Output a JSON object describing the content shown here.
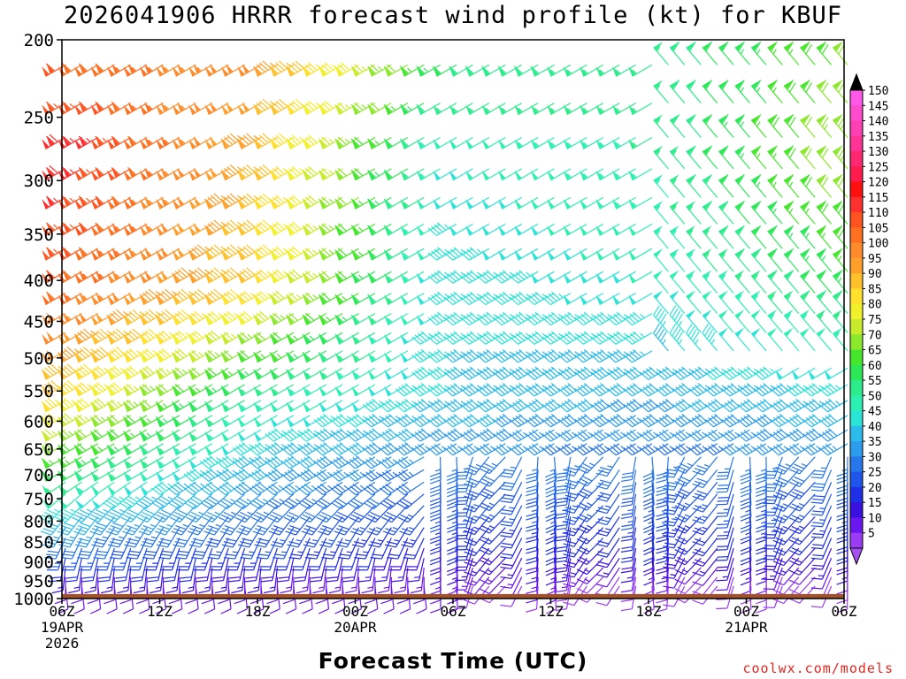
{
  "title": "2026041906 HRRR forecast wind profile (kt) for KBUF",
  "xlabel": "Forecast Time (UTC)",
  "credit": "coolwx.com/models",
  "chart_data": {
    "type": "wind-barb time-height section",
    "title": "2026041906 HRRR forecast wind profile (kt) for KBUF",
    "xlabel": "Forecast Time (UTC)",
    "ylabel": "",
    "y_scale": "log pressure (inverted)",
    "ylim": [
      1000,
      200
    ],
    "xlim_hours": [
      0,
      48
    ],
    "y_ticks": [
      200,
      250,
      300,
      350,
      400,
      450,
      500,
      550,
      600,
      650,
      700,
      750,
      800,
      850,
      900,
      950,
      1000
    ],
    "x_ticks": [
      {
        "hour": 0,
        "label": "06Z",
        "sub1": "19APR",
        "sub2": "2026"
      },
      {
        "hour": 6,
        "label": "12Z",
        "sub1": "",
        "sub2": ""
      },
      {
        "hour": 12,
        "label": "18Z",
        "sub1": "",
        "sub2": ""
      },
      {
        "hour": 18,
        "label": "00Z",
        "sub1": "20APR",
        "sub2": ""
      },
      {
        "hour": 24,
        "label": "06Z",
        "sub1": "",
        "sub2": ""
      },
      {
        "hour": 30,
        "label": "12Z",
        "sub1": "",
        "sub2": ""
      },
      {
        "hour": 36,
        "label": "18Z",
        "sub1": "",
        "sub2": ""
      },
      {
        "hour": 42,
        "label": "00Z",
        "sub1": "21APR",
        "sub2": ""
      },
      {
        "hour": 48,
        "label": "06Z",
        "sub1": "",
        "sub2": ""
      }
    ],
    "colorbar": {
      "units": "kt",
      "levels": [
        5,
        10,
        15,
        20,
        25,
        30,
        35,
        40,
        45,
        50,
        55,
        60,
        65,
        70,
        75,
        80,
        85,
        90,
        95,
        100,
        105,
        110,
        115,
        120,
        125,
        130,
        135,
        140,
        145,
        150
      ],
      "colors": [
        "#9b3cf5",
        "#6a16ee",
        "#3a10e0",
        "#1f2fe6",
        "#1f55ea",
        "#2877ea",
        "#2c9cec",
        "#2cbcec",
        "#2ce4d6",
        "#2cf0b0",
        "#2cec8c",
        "#2ce858",
        "#46e62c",
        "#8ce82c",
        "#c8ec2c",
        "#f0f02c",
        "#ffe02c",
        "#ffc02c",
        "#ffa02c",
        "#ff8c2c",
        "#ff7020",
        "#ff5420",
        "#ff3030",
        "#ff1010",
        "#ff1c4c",
        "#ff2870",
        "#ff3494",
        "#ff40b4",
        "#ff4ccc",
        "#ff58e8"
      ],
      "under_color": "#a450f5",
      "over_color": "#000000"
    },
    "terrain": {
      "color": "#a0522d",
      "surface_pressure_hPa": 987
    },
    "barbs": {
      "time_step_hours": 1,
      "description": "wind speed (kt) and direction (deg) sampled by pressure level and forecast hour",
      "speed_field": [
        {
          "p": 220,
          "from_h0": 110,
          "to_h12": 100,
          "h24": 60,
          "h36": 55,
          "h48": 70
        },
        {
          "p": 270,
          "from_h0": 120,
          "to_h12": 95,
          "h24": 50,
          "h36": 55,
          "h48": 75
        },
        {
          "p": 400,
          "from_h0": 110,
          "to_h12": 90,
          "h24": 45,
          "h36": 50,
          "h48": 65
        },
        {
          "p": 550,
          "from_h0": 90,
          "to_h12": 55,
          "h24": 45,
          "h36": 40,
          "h48": 45
        },
        {
          "p": 700,
          "from_h0": 60,
          "to_h12": 40,
          "h24": 30,
          "h36": 30,
          "h48": 30
        },
        {
          "p": 850,
          "from_h0": 30,
          "to_h12": 25,
          "h24": 20,
          "h36": 20,
          "h48": 20
        },
        {
          "p": 950,
          "from_h0": 10,
          "to_h12": 10,
          "h24": 10,
          "h36": 8,
          "h48": 8
        }
      ]
    }
  }
}
